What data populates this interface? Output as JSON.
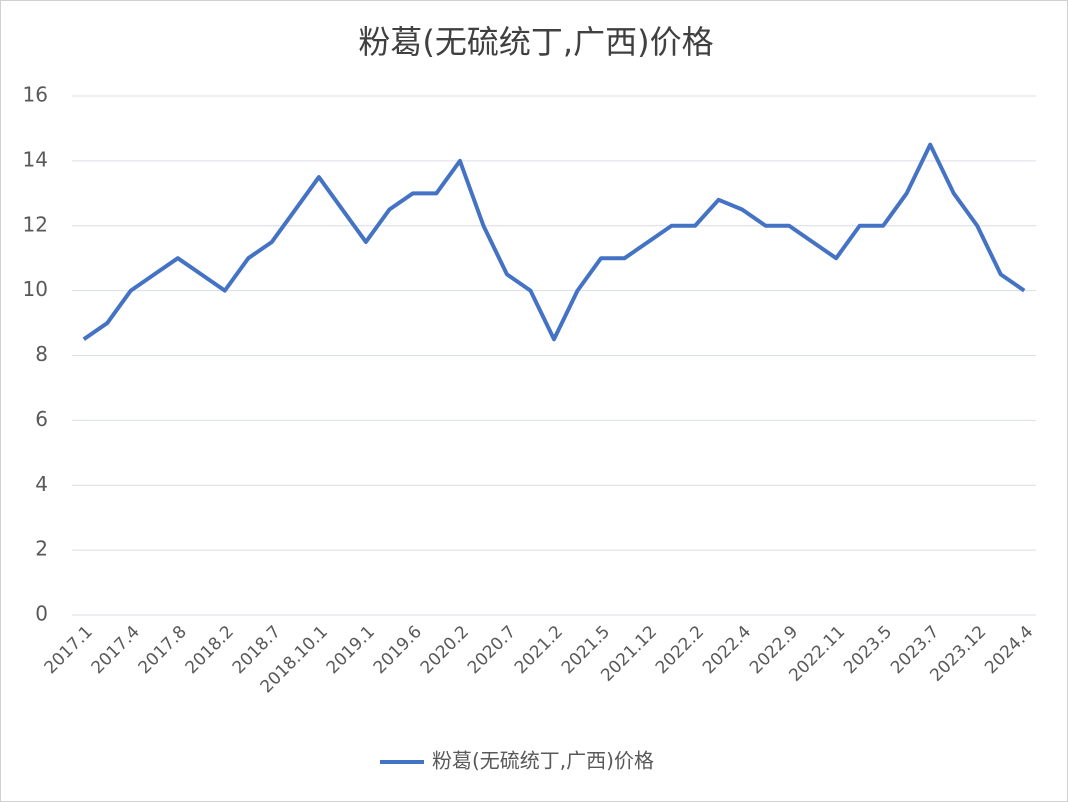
{
  "chart_data": {
    "type": "line",
    "title": "粉葛(无硫统丁,广西)价格",
    "categories": [
      "2017.1",
      null,
      "2017.4",
      null,
      "2017.8",
      null,
      "2018.2",
      null,
      "2018.7",
      null,
      "2018.10.1",
      null,
      "2019.1",
      null,
      "2019.6",
      null,
      "2020.2",
      null,
      "2020.7",
      null,
      "2021.2",
      null,
      "2021.5",
      null,
      "2021.12",
      null,
      "2022.2",
      null,
      "2022.4",
      null,
      "2022.9",
      null,
      "2022.11",
      null,
      "2023.5",
      null,
      "2023.7",
      null,
      "2023.12",
      null,
      "2024.4"
    ],
    "series": [
      {
        "name": "粉葛(无硫统丁,广西)价格",
        "color": "#4472c4",
        "values": [
          8.5,
          9,
          10,
          10.5,
          11,
          10.5,
          10,
          11,
          11.5,
          12.5,
          13.5,
          12.5,
          11.5,
          12.5,
          13,
          13,
          14,
          12,
          10.5,
          10,
          8.5,
          10,
          11,
          11,
          11.5,
          12,
          12,
          12.8,
          12.5,
          12,
          12,
          11.5,
          11,
          12,
          12,
          13,
          14.5,
          13,
          12,
          10.5,
          10
        ]
      }
    ],
    "ylim": [
      0,
      16
    ],
    "yticks": [
      0,
      2,
      4,
      6,
      8,
      10,
      12,
      14,
      16
    ],
    "grid": true,
    "legend": "bottom"
  }
}
